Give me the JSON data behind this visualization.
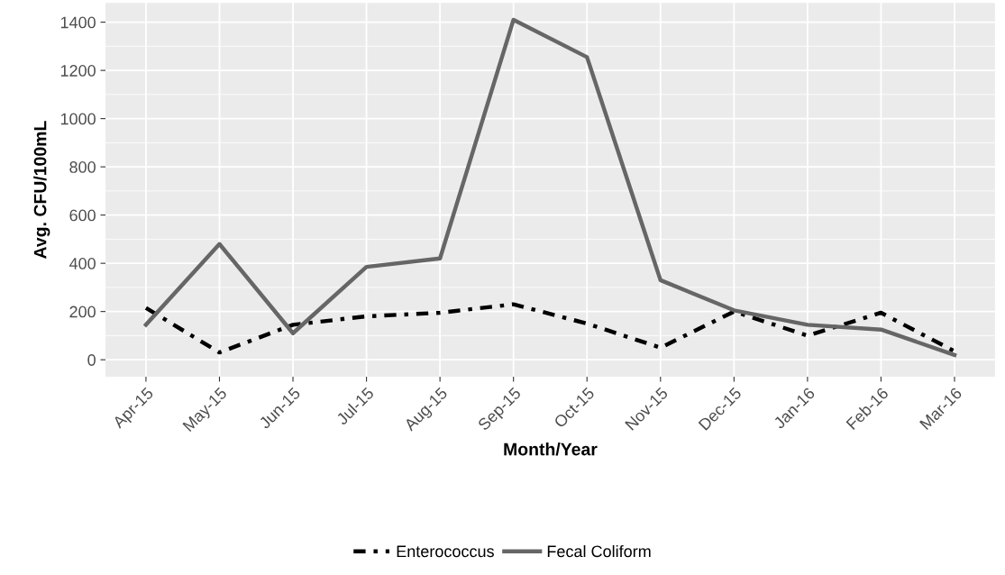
{
  "chart_data": {
    "type": "line",
    "xlabel": "Month/Year",
    "ylabel": "Avg. CFU/100mL",
    "categories": [
      "Apr-15",
      "May-15",
      "Jun-15",
      "Jul-15",
      "Aug-15",
      "Sep-15",
      "Oct-15",
      "Nov-15",
      "Dec-15",
      "Jan-16",
      "Feb-16",
      "Mar-16"
    ],
    "series": [
      {
        "name": "Enterococcus",
        "color": "#000000",
        "line_style": "dashed",
        "values": [
          215,
          30,
          145,
          180,
          195,
          230,
          150,
          50,
          200,
          100,
          195,
          35
        ]
      },
      {
        "name": "Fecal Coliform",
        "color": "#666666",
        "line_style": "solid",
        "values": [
          145,
          480,
          110,
          385,
          420,
          1410,
          1255,
          330,
          205,
          145,
          125,
          20
        ]
      }
    ],
    "ylim": [
      -70,
      1480
    ],
    "yticks": [
      0,
      200,
      400,
      600,
      800,
      1000,
      1200,
      1400
    ],
    "grid": true,
    "legend": "bottom",
    "marker": "none"
  }
}
